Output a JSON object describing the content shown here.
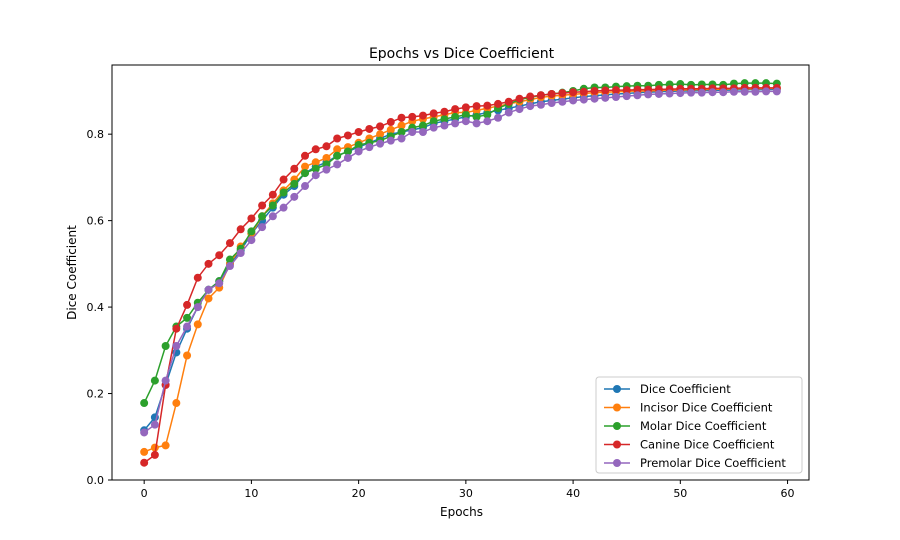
{
  "chart_data": {
    "type": "line",
    "title": "Epochs vs Dice Coefficient",
    "xlabel": "Epochs",
    "ylabel": "Dice Coefficient",
    "xlim": [
      -3,
      62
    ],
    "ylim": [
      0.0,
      0.96
    ],
    "xticks": [
      0,
      10,
      20,
      30,
      40,
      50,
      60
    ],
    "yticks": [
      0.0,
      0.2,
      0.4,
      0.6,
      0.8
    ],
    "xtick_labels": [
      "0",
      "10",
      "20",
      "30",
      "40",
      "50",
      "60"
    ],
    "ytick_labels": [
      "0.0",
      "0.2",
      "0.4",
      "0.6",
      "0.8"
    ],
    "grid": false,
    "legend_position": "lower-right",
    "x": [
      0,
      1,
      2,
      3,
      4,
      5,
      6,
      7,
      8,
      9,
      10,
      11,
      12,
      13,
      14,
      15,
      16,
      17,
      18,
      19,
      20,
      21,
      22,
      23,
      24,
      25,
      26,
      27,
      28,
      29,
      30,
      31,
      32,
      33,
      34,
      35,
      36,
      37,
      38,
      39,
      40,
      41,
      42,
      43,
      44,
      45,
      46,
      47,
      48,
      49,
      50,
      51,
      52,
      53,
      54,
      55,
      56,
      57,
      58,
      59
    ],
    "series": [
      {
        "name": "Dice Coefficient",
        "color": "#1f77b4",
        "values": [
          0.115,
          0.145,
          0.22,
          0.295,
          0.35,
          0.4,
          0.44,
          0.46,
          0.5,
          0.53,
          0.57,
          0.6,
          0.63,
          0.66,
          0.68,
          0.71,
          0.725,
          0.735,
          0.75,
          0.76,
          0.77,
          0.78,
          0.79,
          0.8,
          0.805,
          0.81,
          0.815,
          0.825,
          0.83,
          0.835,
          0.84,
          0.845,
          0.85,
          0.855,
          0.86,
          0.865,
          0.87,
          0.875,
          0.878,
          0.881,
          0.884,
          0.887,
          0.889,
          0.891,
          0.893,
          0.894,
          0.896,
          0.897,
          0.898,
          0.899,
          0.9,
          0.9,
          0.901,
          0.901,
          0.902,
          0.902,
          0.903,
          0.903,
          0.903,
          0.904
        ]
      },
      {
        "name": "Incisor Dice Coefficient",
        "color": "#ff7f0e",
        "values": [
          0.065,
          0.075,
          0.08,
          0.178,
          0.288,
          0.36,
          0.42,
          0.445,
          0.5,
          0.54,
          0.57,
          0.61,
          0.64,
          0.67,
          0.695,
          0.725,
          0.735,
          0.745,
          0.765,
          0.77,
          0.78,
          0.79,
          0.8,
          0.81,
          0.82,
          0.83,
          0.835,
          0.84,
          0.845,
          0.85,
          0.85,
          0.855,
          0.86,
          0.865,
          0.87,
          0.875,
          0.88,
          0.885,
          0.888,
          0.89,
          0.892,
          0.894,
          0.896,
          0.897,
          0.898,
          0.899,
          0.9,
          0.9,
          0.901,
          0.902,
          0.902,
          0.903,
          0.903,
          0.904,
          0.904,
          0.905,
          0.905,
          0.905,
          0.906,
          0.906
        ]
      },
      {
        "name": "Molar Dice Coefficient",
        "color": "#2ca02c",
        "values": [
          0.178,
          0.23,
          0.31,
          0.355,
          0.375,
          0.41,
          0.44,
          0.46,
          0.51,
          0.535,
          0.575,
          0.61,
          0.635,
          0.665,
          0.685,
          0.71,
          0.72,
          0.73,
          0.75,
          0.76,
          0.775,
          0.78,
          0.785,
          0.795,
          0.805,
          0.815,
          0.82,
          0.83,
          0.835,
          0.84,
          0.845,
          0.84,
          0.845,
          0.86,
          0.87,
          0.88,
          0.885,
          0.89,
          0.893,
          0.896,
          0.9,
          0.905,
          0.908,
          0.908,
          0.91,
          0.911,
          0.912,
          0.912,
          0.914,
          0.915,
          0.916,
          0.914,
          0.915,
          0.915,
          0.914,
          0.917,
          0.918,
          0.918,
          0.918,
          0.917
        ]
      },
      {
        "name": "Canine Dice Coefficient",
        "color": "#d62728",
        "values": [
          0.04,
          0.058,
          0.22,
          0.35,
          0.405,
          0.468,
          0.5,
          0.52,
          0.548,
          0.58,
          0.605,
          0.635,
          0.66,
          0.695,
          0.72,
          0.75,
          0.765,
          0.772,
          0.79,
          0.797,
          0.805,
          0.812,
          0.818,
          0.828,
          0.838,
          0.84,
          0.843,
          0.848,
          0.852,
          0.858,
          0.862,
          0.865,
          0.866,
          0.87,
          0.875,
          0.882,
          0.887,
          0.89,
          0.893,
          0.895,
          0.897,
          0.898,
          0.9,
          0.901,
          0.902,
          0.902,
          0.903,
          0.903,
          0.904,
          0.904,
          0.905,
          0.905,
          0.905,
          0.906,
          0.906,
          0.906,
          0.907,
          0.907,
          0.907,
          0.907
        ]
      },
      {
        "name": "Premolar Dice Coefficient",
        "color": "#9467bd",
        "values": [
          0.11,
          0.128,
          0.23,
          0.31,
          0.355,
          0.4,
          0.44,
          0.455,
          0.495,
          0.525,
          0.555,
          0.585,
          0.61,
          0.63,
          0.655,
          0.68,
          0.705,
          0.718,
          0.73,
          0.745,
          0.76,
          0.77,
          0.778,
          0.785,
          0.79,
          0.805,
          0.805,
          0.815,
          0.82,
          0.825,
          0.83,
          0.825,
          0.83,
          0.838,
          0.85,
          0.858,
          0.865,
          0.868,
          0.872,
          0.875,
          0.878,
          0.88,
          0.882,
          0.884,
          0.886,
          0.888,
          0.89,
          0.892,
          0.893,
          0.894,
          0.895,
          0.896,
          0.896,
          0.897,
          0.897,
          0.898,
          0.898,
          0.898,
          0.899,
          0.899
        ]
      }
    ]
  }
}
